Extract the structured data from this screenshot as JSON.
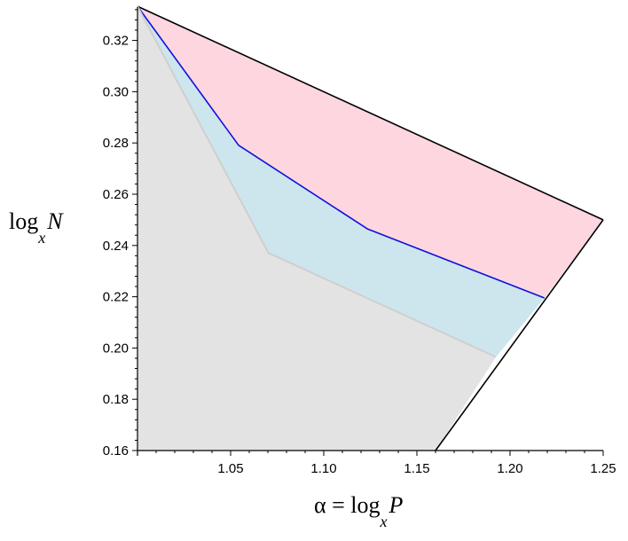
{
  "chart_data": {
    "type": "area",
    "xlim": [
      1.0,
      1.25
    ],
    "ylim": [
      0.16,
      0.333
    ],
    "x_ticks": [
      {
        "value": 1.05,
        "label": "1.05"
      },
      {
        "value": 1.1,
        "label": "1.10"
      },
      {
        "value": 1.15,
        "label": "1.15"
      },
      {
        "value": 1.2,
        "label": "1.20"
      },
      {
        "value": 1.25,
        "label": "1.25"
      }
    ],
    "y_ticks": [
      {
        "value": 0.16,
        "label": "0.16"
      },
      {
        "value": 0.18,
        "label": "0.18"
      },
      {
        "value": 0.2,
        "label": "0.20"
      },
      {
        "value": 0.22,
        "label": "0.22"
      },
      {
        "value": 0.24,
        "label": "0.24"
      },
      {
        "value": 0.26,
        "label": "0.26"
      },
      {
        "value": 0.28,
        "label": "0.28"
      },
      {
        "value": 0.3,
        "label": "0.30"
      },
      {
        "value": 0.32,
        "label": "0.32"
      }
    ],
    "xlabel": {
      "prefix": "α = log",
      "sub": "x",
      "var": "P"
    },
    "ylabel": {
      "prefix": "log",
      "sub": "x",
      "var": "N"
    },
    "grid": false,
    "regions": [
      {
        "fill": "#e3e3e3",
        "points": [
          [
            1.0,
            0.3333
          ],
          [
            1.0,
            0.16
          ],
          [
            1.16,
            0.16
          ],
          [
            1.1925,
            0.1965
          ],
          [
            1.0703,
            0.2371
          ]
        ]
      },
      {
        "fill": "#cde6ee",
        "points": [
          [
            1.0,
            0.3333
          ],
          [
            1.0703,
            0.2371
          ],
          [
            1.1925,
            0.1965
          ],
          [
            1.2185,
            0.2195
          ],
          [
            1.1236,
            0.2464
          ],
          [
            1.0543,
            0.2791
          ]
        ]
      },
      {
        "fill": "#fdd6df",
        "points": [
          [
            1.0,
            0.3333
          ],
          [
            1.0543,
            0.2791
          ],
          [
            1.1236,
            0.2464
          ],
          [
            1.2185,
            0.2195
          ],
          [
            1.25,
            0.25
          ]
        ]
      }
    ],
    "lines": [
      {
        "color": "#1010dd",
        "width": 1.6,
        "points": [
          [
            1.0,
            0.3333
          ],
          [
            1.0543,
            0.2791
          ],
          [
            1.1236,
            0.2464
          ],
          [
            1.2185,
            0.2195
          ]
        ]
      },
      {
        "color": "#000000",
        "width": 1.6,
        "points": [
          [
            1.0,
            0.3333
          ],
          [
            1.25,
            0.25
          ]
        ]
      },
      {
        "color": "#000000",
        "width": 1.6,
        "points": [
          [
            1.16,
            0.16
          ],
          [
            1.25,
            0.25
          ]
        ]
      },
      {
        "color": "#cfcfcf",
        "width": 2.0,
        "points": [
          [
            1.0,
            0.3333
          ],
          [
            1.0703,
            0.2371
          ],
          [
            1.1925,
            0.1965
          ]
        ]
      }
    ]
  }
}
